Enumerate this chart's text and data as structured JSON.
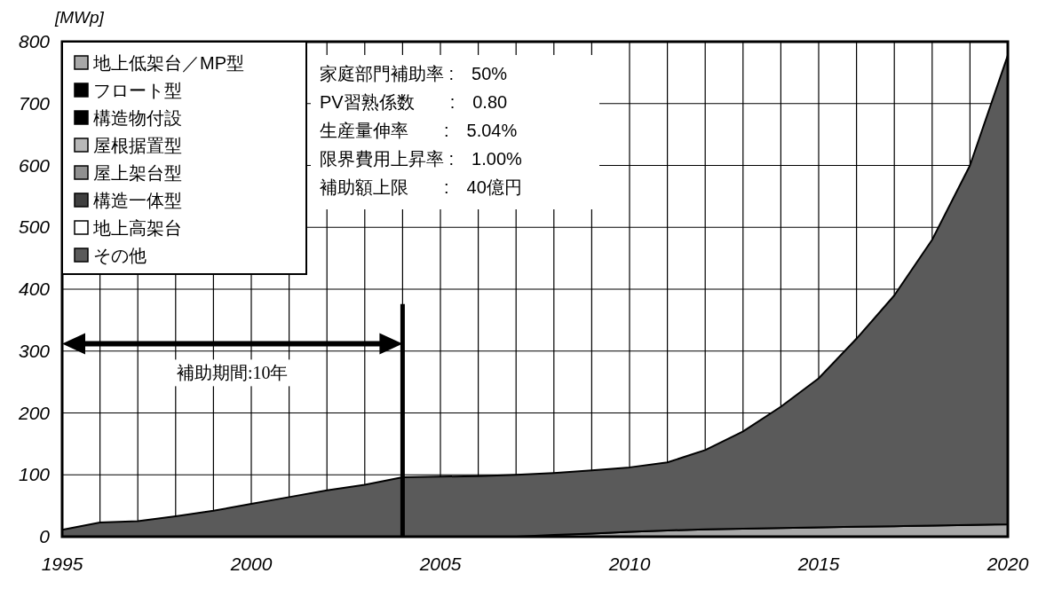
{
  "chart_data": {
    "type": "area",
    "stacked": true,
    "ylabel": "[MWp]",
    "x": [
      1995,
      1996,
      1997,
      1998,
      1999,
      2000,
      2001,
      2002,
      2003,
      2004,
      2005,
      2006,
      2007,
      2008,
      2009,
      2010,
      2011,
      2012,
      2013,
      2014,
      2015,
      2016,
      2017,
      2018,
      2019,
      2020
    ],
    "series": [
      {
        "name": "地上低架台／MP型",
        "color": "#a8a8a8",
        "values": [
          0,
          0,
          0,
          0,
          0,
          0,
          0,
          0,
          0,
          0,
          0,
          0,
          0,
          3,
          5,
          8,
          10,
          12,
          13,
          14,
          15,
          16,
          17,
          18,
          19,
          20
        ]
      },
      {
        "name": "フロート型",
        "color": "#000000",
        "values": [
          null,
          null,
          null,
          null,
          null,
          null,
          null,
          null,
          null,
          null,
          null,
          null,
          null,
          null,
          null,
          null,
          null,
          null,
          null,
          null,
          null,
          null,
          null,
          null,
          null,
          null
        ]
      },
      {
        "name": "構造物付設",
        "color": "#000000",
        "values": [
          null,
          null,
          null,
          null,
          null,
          null,
          null,
          null,
          null,
          null,
          null,
          null,
          null,
          null,
          null,
          null,
          null,
          null,
          null,
          null,
          null,
          null,
          null,
          null,
          null,
          null
        ]
      },
      {
        "name": "屋根据置型",
        "color": "#b8b8b8",
        "values": [
          null,
          null,
          null,
          null,
          null,
          null,
          null,
          null,
          null,
          null,
          null,
          null,
          null,
          null,
          null,
          null,
          null,
          null,
          null,
          null,
          null,
          null,
          null,
          null,
          null,
          null
        ]
      },
      {
        "name": "屋上架台型",
        "color": "#909090",
        "values": [
          null,
          null,
          null,
          null,
          null,
          null,
          null,
          null,
          null,
          null,
          null,
          null,
          null,
          null,
          null,
          null,
          null,
          null,
          null,
          null,
          null,
          null,
          null,
          null,
          null,
          null
        ]
      },
      {
        "name": "構造一体型",
        "color": "#404040",
        "values": [
          null,
          null,
          null,
          null,
          null,
          null,
          null,
          null,
          null,
          null,
          null,
          null,
          null,
          null,
          null,
          null,
          null,
          null,
          null,
          null,
          null,
          null,
          null,
          null,
          null,
          null
        ]
      },
      {
        "name": "地上高架台",
        "color": "#ffffff",
        "values": [
          null,
          null,
          null,
          null,
          null,
          null,
          null,
          null,
          null,
          null,
          null,
          null,
          null,
          null,
          null,
          null,
          null,
          null,
          null,
          null,
          null,
          null,
          null,
          null,
          null,
          null
        ]
      },
      {
        "name": "その他",
        "color": "#5a5a5a",
        "values": [
          11,
          23,
          25,
          33,
          42,
          53,
          64,
          75,
          84,
          96,
          97,
          98,
          100,
          100,
          102,
          104,
          110,
          128,
          157,
          196,
          241,
          304,
          373,
          462,
          581,
          758
        ]
      }
    ],
    "xlim": [
      1995,
      2020
    ],
    "xticks": [
      1995,
      {
        "value": 1996,
        "label": null
      },
      {
        "value": 1997,
        "label": null
      },
      {
        "value": 1998,
        "label": null
      },
      {
        "value": 1999,
        "label": null
      },
      2000,
      {
        "value": 2001,
        "label": null
      },
      {
        "value": 2002,
        "label": null
      },
      {
        "value": 2003,
        "label": null
      },
      {
        "value": 2004,
        "label": null
      },
      2005,
      {
        "value": 2006,
        "label": null
      },
      {
        "value": 2007,
        "label": null
      },
      {
        "value": 2008,
        "label": null
      },
      {
        "value": 2009,
        "label": null
      },
      2010,
      {
        "value": 2011,
        "label": null
      },
      {
        "value": 2012,
        "label": null
      },
      {
        "value": 2013,
        "label": null
      },
      {
        "value": 2014,
        "label": null
      },
      2015,
      {
        "value": 2016,
        "label": null
      },
      {
        "value": 2017,
        "label": null
      },
      {
        "value": 2018,
        "label": null
      },
      {
        "value": 2019,
        "label": null
      },
      2020
    ],
    "ylim": [
      0,
      800
    ],
    "yticks": [
      0,
      100,
      200,
      300,
      400,
      500,
      600,
      700,
      800
    ],
    "grid": true,
    "legend": "top left",
    "ref_lines": [
      {
        "axis": "x",
        "value": 2004,
        "color": "#000000"
      }
    ],
    "annotations": [
      "家庭部門補助率 :　50%",
      "PV習熟係数　　:　0.80",
      "生産量伸率　　:　5.04%",
      "限界費用上昇率 :　1.00%",
      "補助額上限　　:　40億円",
      "補助期間:10年"
    ]
  }
}
